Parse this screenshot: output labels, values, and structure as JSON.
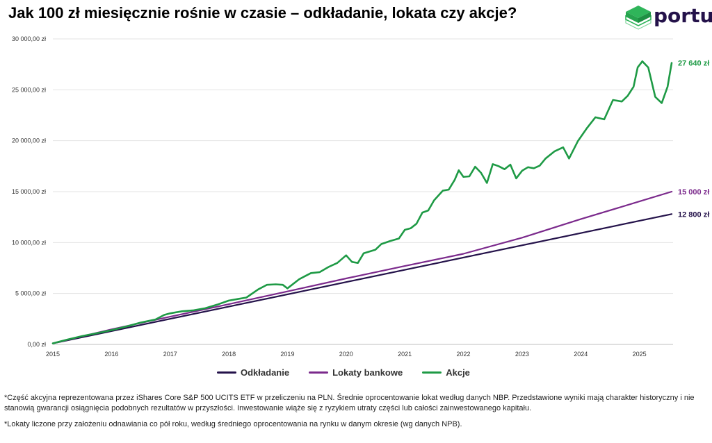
{
  "title": "Jak 100 zł miesięcznie rośnie w czasie – odkładanie, lokata czy akcje?",
  "logo": {
    "text": "portu",
    "icon": "cube-stack-icon",
    "colors": {
      "top": "#2fb55a",
      "side": "#1f8f43",
      "text": "#24124a"
    }
  },
  "chart_data": {
    "type": "line",
    "title": "Jak 100 zł miesięcznie rośnie w czasie – odkładanie, lokata czy akcje?",
    "xlim": [
      2015,
      2025.55
    ],
    "ylim": [
      0,
      30000
    ],
    "grid": "horizontal",
    "legend": "bottom",
    "x_ticks": [
      "2015",
      "2016",
      "2017",
      "2018",
      "2019",
      "2020",
      "2021",
      "2022",
      "2023",
      "2024",
      "2025"
    ],
    "y_ticks": [
      "0,00 zł",
      "5 000,00 zł",
      "10 000,00 zł",
      "15 000,00 zł",
      "20 000,00 zł",
      "25 000,00 zł",
      "30 000,00 zł"
    ],
    "series": [
      {
        "name": "Odkładanie",
        "color": "#24124a",
        "end_label": "12 800 zł",
        "x": [
          2015,
          2025.55
        ],
        "y": [
          100,
          12800
        ]
      },
      {
        "name": "Lokaty bankowe",
        "color": "#7b2a8c",
        "end_label": "15 000 zł",
        "x": [
          2015,
          2016,
          2017,
          2018,
          2019,
          2020,
          2021,
          2022,
          2023,
          2024,
          2025,
          2025.55
        ],
        "y": [
          100,
          1480,
          2720,
          3950,
          5200,
          6480,
          7700,
          8900,
          10480,
          12300,
          14040,
          15000
        ]
      },
      {
        "name": "Akcje",
        "color": "#1e9a45",
        "end_label": "27 640 zł",
        "x": [
          2015,
          2015.25,
          2015.5,
          2015.75,
          2016,
          2016.25,
          2016.5,
          2016.75,
          2016.9,
          2017,
          2017.2,
          2017.4,
          2017.6,
          2017.8,
          2018,
          2018.15,
          2018.3,
          2018.5,
          2018.65,
          2018.8,
          2018.92,
          2019,
          2019.2,
          2019.3,
          2019.4,
          2019.55,
          2019.7,
          2019.85,
          2020,
          2020.1,
          2020.2,
          2020.3,
          2020.5,
          2020.6,
          2020.75,
          2020.9,
          2021,
          2021.1,
          2021.2,
          2021.3,
          2021.4,
          2021.5,
          2021.65,
          2021.75,
          2021.85,
          2021.92,
          2022,
          2022.1,
          2022.2,
          2022.3,
          2022.4,
          2022.5,
          2022.6,
          2022.7,
          2022.8,
          2022.9,
          2023,
          2023.1,
          2023.2,
          2023.3,
          2023.4,
          2023.55,
          2023.7,
          2023.8,
          2023.95,
          2024.1,
          2024.25,
          2024.4,
          2024.55,
          2024.7,
          2024.8,
          2024.9,
          2024.97,
          2025.05,
          2025.15,
          2025.27,
          2025.38,
          2025.48,
          2025.55
        ],
        "y": [
          100,
          480,
          820,
          1100,
          1400,
          1750,
          2150,
          2450,
          2900,
          3050,
          3250,
          3350,
          3550,
          3900,
          4300,
          4450,
          4600,
          5400,
          5850,
          5900,
          5850,
          5500,
          6400,
          6700,
          7000,
          7100,
          7600,
          8000,
          8750,
          8100,
          8000,
          8950,
          9300,
          9850,
          10150,
          10400,
          11250,
          11400,
          11850,
          12950,
          13150,
          14150,
          15100,
          15200,
          16150,
          17100,
          16450,
          16500,
          17450,
          16850,
          15850,
          17700,
          17500,
          17200,
          17650,
          16300,
          17050,
          17400,
          17300,
          17550,
          18250,
          18950,
          19350,
          18250,
          19950,
          21200,
          22300,
          22100,
          24000,
          23850,
          24400,
          25300,
          27200,
          27800,
          27200,
          24300,
          23700,
          25300,
          27640
        ]
      }
    ]
  },
  "notes": [
    "*Część akcyjna reprezentowana przez iShares Core S&P 500 UCITS ETF w przeliczeniu na PLN. Średnie oprocentowanie lokat według danych NBP. Przedstawione wyniki mają charakter historyczny i nie stanowią gwarancji osiągnięcia podobnych rezultatów w przyszłości. Inwestowanie wiąże się z ryzykiem utraty części lub całości zainwestowanego kapitału.",
    "*Lokaty liczone przy założeniu odnawiania co pół roku, według średniego oprocentowania na rynku w danym okresie (wg danych NPB)."
  ]
}
